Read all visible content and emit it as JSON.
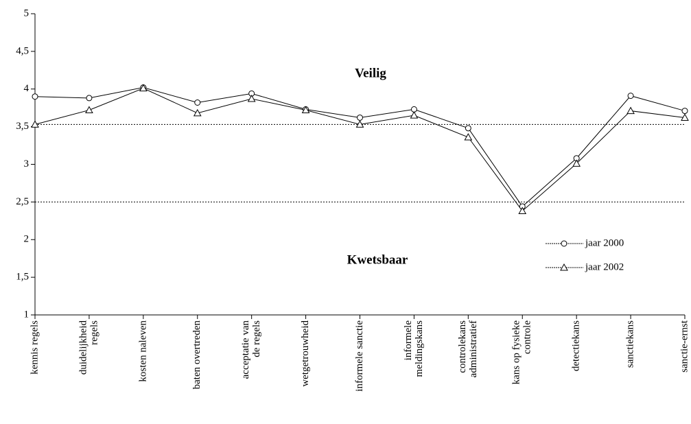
{
  "chart_data": {
    "type": "line",
    "categories": [
      [
        "kennis regels"
      ],
      [
        "duidelijkheid",
        "regels"
      ],
      [
        "kosten naleven"
      ],
      [
        "baten overtreden"
      ],
      [
        "acceptatie van",
        "de regels"
      ],
      [
        "wetgetrouwheid"
      ],
      [
        "informele sanctie"
      ],
      [
        "informele",
        "meldingskans"
      ],
      [
        "controlekans",
        "administratief"
      ],
      [
        "kans op fysieke",
        "controle"
      ],
      [
        "detectiekans"
      ],
      [
        "sanctiekans"
      ],
      [
        "sanctie-ernst"
      ]
    ],
    "series": [
      {
        "name": "jaar 2000",
        "color": "#000000",
        "marker": "circle",
        "values": [
          3.9,
          3.88,
          4.02,
          3.82,
          3.94,
          3.73,
          3.62,
          3.73,
          3.48,
          2.44,
          3.08,
          3.91,
          3.71
        ]
      },
      {
        "name": "jaar 2002",
        "color": "#000000",
        "marker": "triangle",
        "values": [
          3.53,
          3.72,
          4.01,
          3.68,
          3.87,
          3.72,
          3.53,
          3.65,
          3.36,
          2.38,
          3.01,
          3.71,
          3.62
        ]
      }
    ],
    "ylim": [
      1,
      5
    ],
    "yticks": [
      1,
      {
        "value": 1.5,
        "label": "1,5"
      },
      2,
      {
        "value": 2.5,
        "label": "2,5"
      },
      3,
      {
        "value": 3.5,
        "label": "3,5"
      },
      4,
      {
        "value": 4.5,
        "label": "4,5"
      },
      5
    ],
    "reference_lines": [
      3.53,
      2.5
    ],
    "annotations": [
      "Veilig",
      "Kwetsbaar"
    ],
    "legend": "right"
  }
}
